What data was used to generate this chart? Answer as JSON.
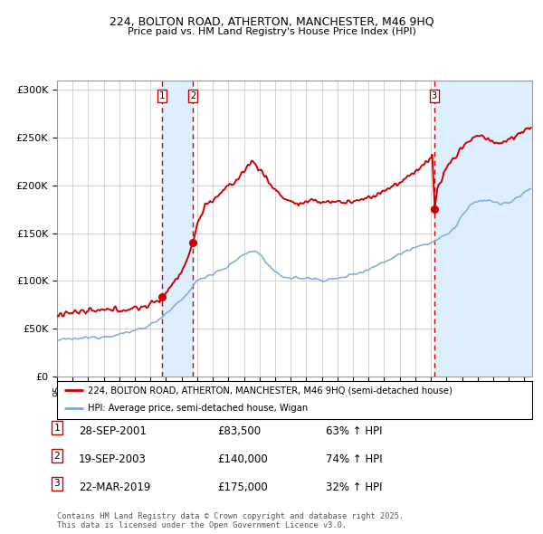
{
  "title1": "224, BOLTON ROAD, ATHERTON, MANCHESTER, M46 9HQ",
  "title2": "Price paid vs. HM Land Registry's House Price Index (HPI)",
  "ylabel_ticks": [
    "£0",
    "£50K",
    "£100K",
    "£150K",
    "£200K",
    "£250K",
    "£300K"
  ],
  "ytick_values": [
    0,
    50000,
    100000,
    150000,
    200000,
    250000,
    300000
  ],
  "ylim": [
    0,
    310000
  ],
  "xlim_start": 1995.0,
  "xlim_end": 2025.5,
  "sale_dates": [
    2001.747,
    2003.72,
    2019.22
  ],
  "sale_prices": [
    83500,
    140000,
    175000
  ],
  "sale_labels": [
    "1",
    "2",
    "3"
  ],
  "sale_info": [
    {
      "num": "1",
      "date": "28-SEP-2001",
      "price": "£83,500",
      "change": "63% ↑ HPI"
    },
    {
      "num": "2",
      "date": "19-SEP-2003",
      "price": "£140,000",
      "change": "74% ↑ HPI"
    },
    {
      "num": "3",
      "date": "22-MAR-2019",
      "price": "£175,000",
      "change": "32% ↑ HPI"
    }
  ],
  "hpi_line_color": "#7aaadd",
  "price_line_color": "#cc0000",
  "shade_color": "#ddeeff",
  "dashed_line_color": "#cc0000",
  "background_color": "#ffffff",
  "grid_color": "#cccccc",
  "legend_label_red": "224, BOLTON ROAD, ATHERTON, MANCHESTER, M46 9HQ (semi-detached house)",
  "legend_label_blue": "HPI: Average price, semi-detached house, Wigan",
  "footnote": "Contains HM Land Registry data © Crown copyright and database right 2025.\nThis data is licensed under the Open Government Licence v3.0."
}
